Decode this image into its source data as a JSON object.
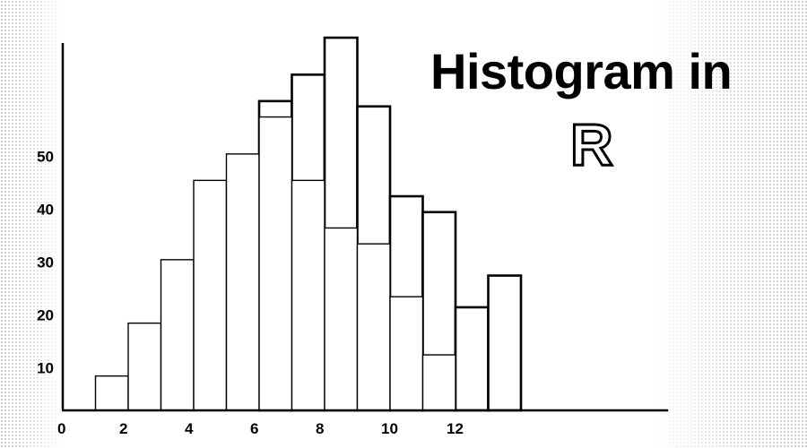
{
  "chart_data": {
    "type": "bar",
    "title": "Histogram in",
    "title_r": "R",
    "xlabel": "",
    "ylabel": "",
    "xlim": [
      0,
      18.5
    ],
    "ylim": [
      3.5,
      75
    ],
    "x_ticks": [
      0,
      2,
      4,
      6,
      8,
      10,
      12
    ],
    "y_ticks": [
      10,
      20,
      30,
      40,
      50
    ],
    "grid": false,
    "series": [
      {
        "bins": [
          {
            "x0": 1,
            "x1": 2,
            "value": 10
          },
          {
            "x0": 2,
            "x1": 3,
            "value": 20
          },
          {
            "x0": 3,
            "x1": 4,
            "value": 32
          },
          {
            "x0": 4,
            "x1": 5,
            "value": 47
          },
          {
            "x0": 5,
            "x1": 6,
            "value": 52
          },
          {
            "x0": 6,
            "x1": 7,
            "value": 59
          },
          {
            "x0": 7,
            "x1": 8,
            "value": 47
          },
          {
            "x0": 8,
            "x1": 9,
            "value": 38
          },
          {
            "x0": 9,
            "x1": 10,
            "value": 35
          },
          {
            "x0": 10,
            "x1": 11,
            "value": 25
          },
          {
            "x0": 11,
            "x1": 12,
            "value": 14
          }
        ]
      },
      {
        "bins": [
          {
            "x0": 6,
            "x1": 7,
            "value": 62
          },
          {
            "x0": 7,
            "x1": 8,
            "value": 67
          },
          {
            "x0": 8,
            "x1": 9,
            "value": 74
          },
          {
            "x0": 9,
            "x1": 10,
            "value": 61
          },
          {
            "x0": 10,
            "x1": 11,
            "value": 44
          },
          {
            "x0": 11,
            "x1": 12,
            "value": 41
          },
          {
            "x0": 12,
            "x1": 13,
            "value": 23
          },
          {
            "x0": 13,
            "x1": 14,
            "value": 29
          }
        ]
      }
    ]
  }
}
